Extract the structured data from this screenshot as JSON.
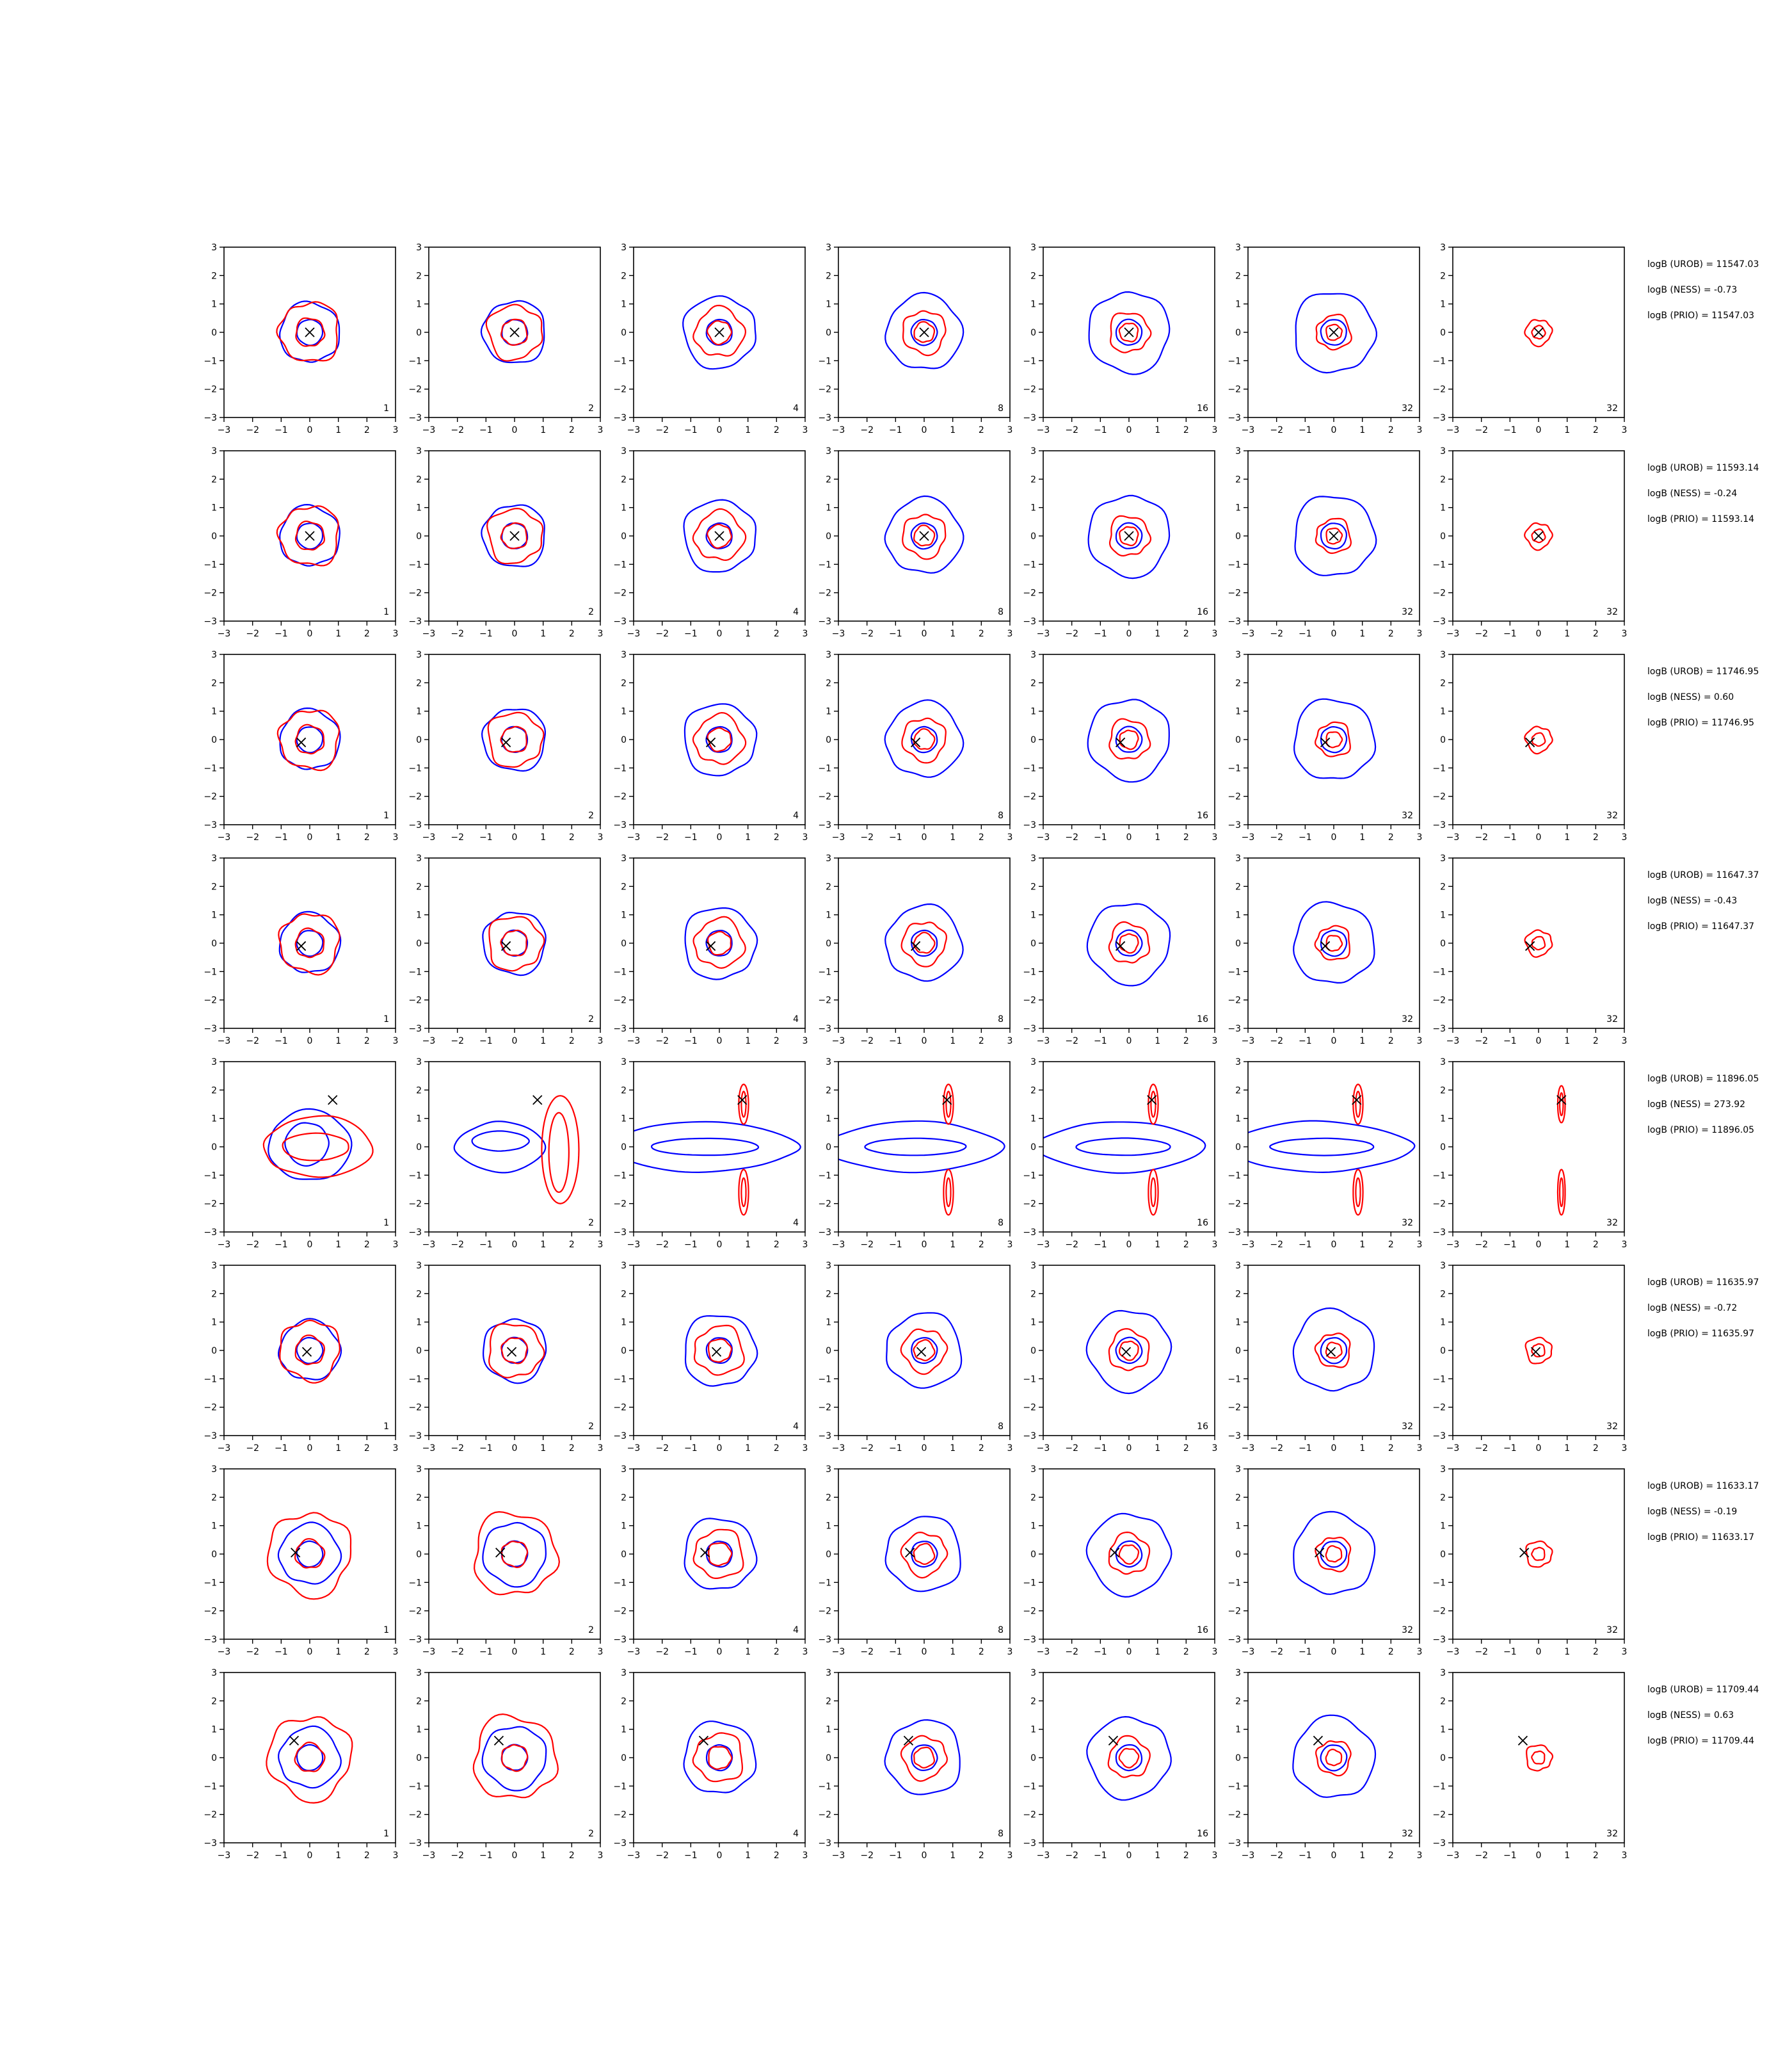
{
  "chart_data": {
    "type": "contour-grid",
    "layout": {
      "rows": 8,
      "cols": 7
    },
    "xlim": [
      -3,
      3
    ],
    "ylim": [
      -3,
      3
    ],
    "xticks": [
      -3,
      -2,
      -1,
      0,
      1,
      2,
      3
    ],
    "yticks": [
      -3,
      -2,
      -1,
      0,
      1,
      2,
      3
    ],
    "xtick_labels": [
      "−3",
      "−2",
      "−1",
      "0",
      "1",
      "2",
      "3"
    ],
    "ytick_labels": [
      "−3",
      "−2",
      "−1",
      "0",
      "1",
      "2",
      "3"
    ],
    "grid": false,
    "colors": {
      "reference": "#0000ff",
      "approx": "#ff0000",
      "marker": "#000000",
      "axes": "#000000"
    },
    "panel_labels": [
      "1",
      "2",
      "4",
      "8",
      "16",
      "32",
      "32"
    ],
    "rows": [
      {
        "marker": [
          0.0,
          0.0
        ],
        "kind": "round",
        "annotations": [
          "logB (UROB) = 11547.03",
          "logB (NESS) = -0.73",
          "logB (PRIO) = 11547.03"
        ]
      },
      {
        "marker": [
          0.0,
          0.0
        ],
        "kind": "round",
        "annotations": [
          "logB (UROB) = 11593.14",
          "logB (NESS) = -0.24",
          "logB (PRIO) = 11593.14"
        ]
      },
      {
        "marker": [
          -0.3,
          -0.1
        ],
        "kind": "round",
        "annotations": [
          "logB (UROB) = 11746.95",
          "logB (NESS) = 0.60",
          "logB (PRIO) = 11746.95"
        ]
      },
      {
        "marker": [
          -0.3,
          -0.1
        ],
        "kind": "round",
        "annotations": [
          "logB (UROB) = 11647.37",
          "logB (NESS) = -0.43",
          "logB (PRIO) = 11647.37"
        ]
      },
      {
        "marker": [
          0.8,
          1.65
        ],
        "kind": "elongated",
        "annotations": [
          "logB (UROB) = 11896.05",
          "logB (NESS) = 273.92",
          "logB (PRIO) = 11896.05"
        ]
      },
      {
        "marker": [
          -0.1,
          -0.05
        ],
        "kind": "round",
        "annotations": [
          "logB (UROB) = 11635.97",
          "logB (NESS) = -0.72",
          "logB (PRIO) = 11635.97"
        ]
      },
      {
        "marker": [
          -0.5,
          0.05
        ],
        "kind": "round",
        "annotations": [
          "logB (UROB) = 11633.17",
          "logB (NESS) = -0.19",
          "logB (PRIO) = 11633.17"
        ]
      },
      {
        "marker": [
          -0.55,
          0.6
        ],
        "kind": "round",
        "annotations": [
          "logB (UROB) = 11709.44",
          "logB (NESS) = 0.63",
          "logB (PRIO) = 11709.44"
        ]
      }
    ]
  }
}
